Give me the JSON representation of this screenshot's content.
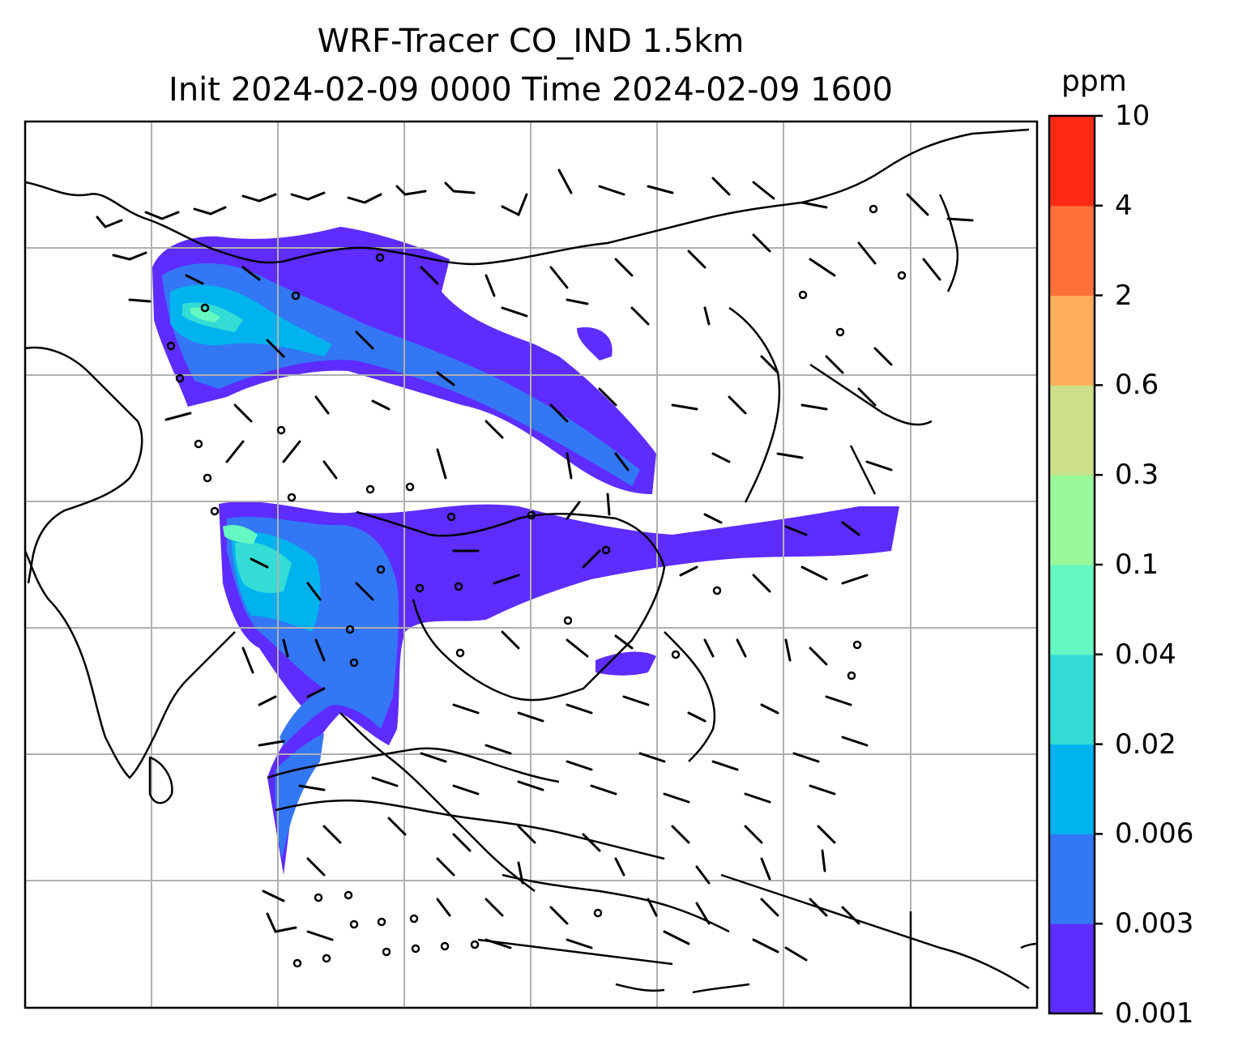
{
  "title": {
    "line1": "WRF-Tracer CO_IND 1.5km",
    "line2": "Init 2024-02-09 0000 Time 2024-02-09 1600"
  },
  "colorbar": {
    "unit": "ppm",
    "tick_labels": [
      "0.001",
      "0.003",
      "0.006",
      "0.02",
      "0.04",
      "0.1",
      "0.3",
      "0.6",
      "2",
      "4",
      "10"
    ],
    "colors": [
      "#5e2cff",
      "#3377f5",
      "#00b3ee",
      "#33dcd4",
      "#66f8c2",
      "#99f99a",
      "#cce08a",
      "#ffae5c",
      "#ff7038",
      "#ff2a14"
    ]
  },
  "map": {
    "gridlines": true,
    "coastline_color": "#000000",
    "gridline_color": "#b0b0b0",
    "features": [
      "coastlines",
      "country-borders",
      "gridlines",
      "wind-barbs",
      "tracer-concentration-fill"
    ]
  }
}
